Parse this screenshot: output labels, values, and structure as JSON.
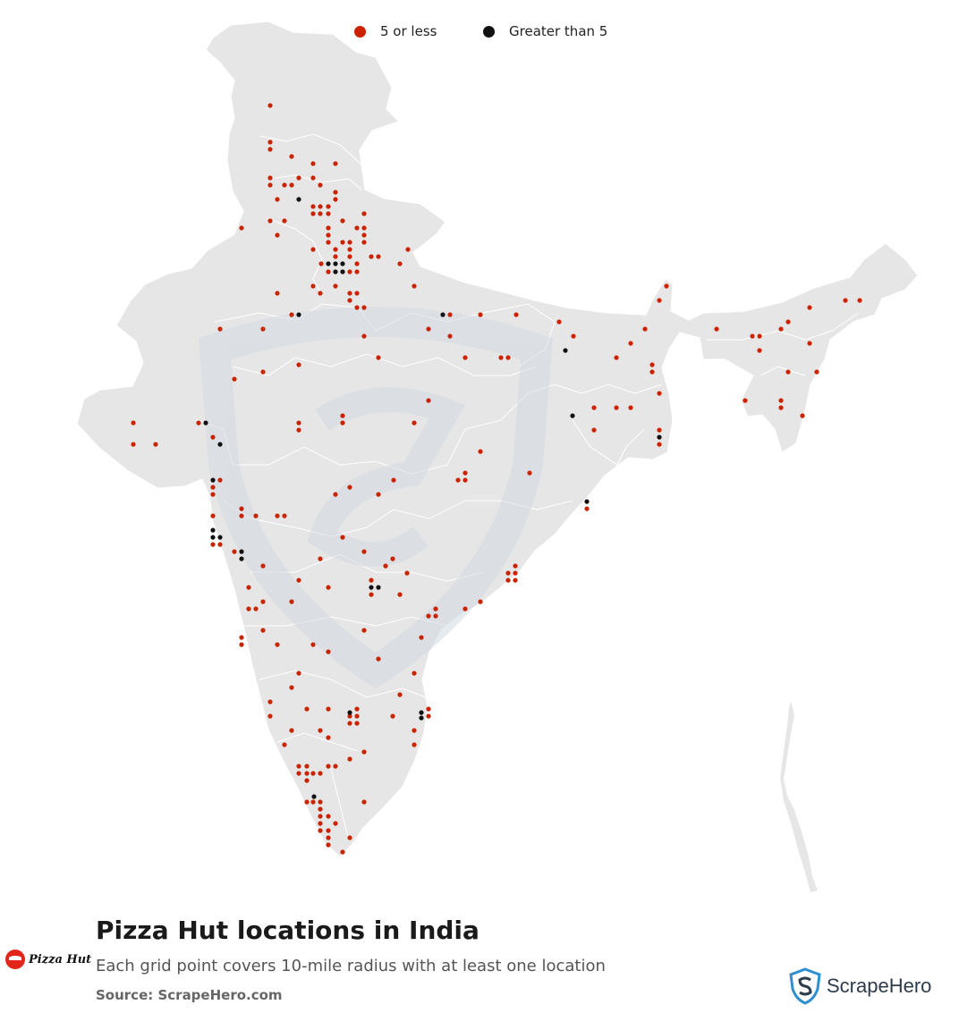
{
  "legend": [
    {
      "label": "5 or less",
      "color": "#cc2200"
    },
    {
      "label": "Greater than 5",
      "color": "#111111"
    }
  ],
  "colors": {
    "land": "#e6e6e6",
    "border": "#ffffff",
    "watermark": "#dde3e8"
  },
  "title": "Pizza Hut locations in India",
  "subtitle": "Each grid point covers 10-mile radius with at least one location",
  "source": "Source: ScrapeHero.com",
  "brand": {
    "name": "Pizza Hut",
    "icon": "pizza-hut-logo-icon"
  },
  "provider": {
    "name": "ScrapeHero",
    "icon": "scrapehero-shield-icon"
  },
  "map": {
    "red_points": [
      [
        302,
        118
      ],
      [
        302,
        159
      ],
      [
        302,
        167
      ],
      [
        326,
        175
      ],
      [
        350,
        183
      ],
      [
        375,
        183
      ],
      [
        302,
        199
      ],
      [
        334,
        199
      ],
      [
        350,
        199
      ],
      [
        302,
        207
      ],
      [
        318,
        207
      ],
      [
        326,
        207
      ],
      [
        358,
        207
      ],
      [
        375,
        215
      ],
      [
        310,
        223
      ],
      [
        375,
        223
      ],
      [
        350,
        231
      ],
      [
        358,
        231
      ],
      [
        367,
        231
      ],
      [
        302,
        247
      ],
      [
        350,
        239
      ],
      [
        358,
        239
      ],
      [
        367,
        239
      ],
      [
        383,
        247
      ],
      [
        407,
        239
      ],
      [
        270,
        255
      ],
      [
        318,
        247
      ],
      [
        367,
        255
      ],
      [
        399,
        255
      ],
      [
        407,
        255
      ],
      [
        310,
        263
      ],
      [
        367,
        263
      ],
      [
        407,
        263
      ],
      [
        367,
        271
      ],
      [
        383,
        271
      ],
      [
        391,
        271
      ],
      [
        407,
        271
      ],
      [
        350,
        279
      ],
      [
        375,
        279
      ],
      [
        391,
        279
      ],
      [
        456,
        279
      ],
      [
        375,
        287
      ],
      [
        391,
        287
      ],
      [
        415,
        287
      ],
      [
        423,
        287
      ],
      [
        359,
        295
      ],
      [
        399,
        295
      ],
      [
        447,
        295
      ],
      [
        367,
        304
      ],
      [
        391,
        304
      ],
      [
        399,
        304
      ],
      [
        463,
        320
      ],
      [
        350,
        320
      ],
      [
        358,
        328
      ],
      [
        375,
        320
      ],
      [
        391,
        328
      ],
      [
        399,
        328
      ],
      [
        310,
        328
      ],
      [
        391,
        336
      ],
      [
        399,
        344
      ],
      [
        407,
        344
      ],
      [
        326,
        352
      ],
      [
        503,
        352
      ],
      [
        537,
        352
      ],
      [
        577,
        352
      ],
      [
        625,
        360
      ],
      [
        737,
        336
      ],
      [
        745,
        320
      ],
      [
        246,
        368
      ],
      [
        294,
        368
      ],
      [
        479,
        368
      ],
      [
        407,
        376
      ],
      [
        503,
        376
      ],
      [
        641,
        376
      ],
      [
        705,
        384
      ],
      [
        721,
        368
      ],
      [
        423,
        400
      ],
      [
        520,
        400
      ],
      [
        560,
        400
      ],
      [
        568,
        400
      ],
      [
        689,
        400
      ],
      [
        729,
        408
      ],
      [
        294,
        416
      ],
      [
        334,
        408
      ],
      [
        729,
        416
      ],
      [
        262,
        424
      ],
      [
        737,
        440
      ],
      [
        479,
        448
      ],
      [
        664,
        456
      ],
      [
        689,
        456
      ],
      [
        705,
        456
      ],
      [
        149,
        473
      ],
      [
        222,
        473
      ],
      [
        334,
        473
      ],
      [
        383,
        465
      ],
      [
        383,
        473
      ],
      [
        463,
        473
      ],
      [
        664,
        481
      ],
      [
        737,
        481
      ],
      [
        149,
        497
      ],
      [
        174,
        497
      ],
      [
        238,
        489
      ],
      [
        737,
        497
      ],
      [
        334,
        481
      ],
      [
        592,
        529
      ],
      [
        537,
        505
      ],
      [
        520,
        529
      ],
      [
        512,
        537
      ],
      [
        520,
        537
      ],
      [
        246,
        537
      ],
      [
        440,
        537
      ],
      [
        238,
        545
      ],
      [
        238,
        553
      ],
      [
        391,
        545
      ],
      [
        375,
        553
      ],
      [
        423,
        553
      ],
      [
        270,
        569
      ],
      [
        270,
        577
      ],
      [
        286,
        577
      ],
      [
        310,
        577
      ],
      [
        318,
        577
      ],
      [
        238,
        577
      ],
      [
        656,
        569
      ],
      [
        238,
        609
      ],
      [
        246,
        609
      ],
      [
        262,
        617
      ],
      [
        383,
        601
      ],
      [
        407,
        617
      ],
      [
        358,
        625
      ],
      [
        439,
        625
      ],
      [
        431,
        633
      ],
      [
        294,
        633
      ],
      [
        576,
        633
      ],
      [
        568,
        641
      ],
      [
        576,
        641
      ],
      [
        568,
        649
      ],
      [
        576,
        649
      ],
      [
        455,
        641
      ],
      [
        334,
        649
      ],
      [
        415,
        649
      ],
      [
        367,
        657
      ],
      [
        415,
        665
      ],
      [
        278,
        657
      ],
      [
        447,
        665
      ],
      [
        537,
        673
      ],
      [
        294,
        673
      ],
      [
        326,
        673
      ],
      [
        278,
        681
      ],
      [
        286,
        681
      ],
      [
        520,
        681
      ],
      [
        487,
        681
      ],
      [
        479,
        689
      ],
      [
        487,
        689
      ],
      [
        270,
        713
      ],
      [
        270,
        721
      ],
      [
        294,
        705
      ],
      [
        407,
        705
      ],
      [
        310,
        721
      ],
      [
        350,
        721
      ],
      [
        471,
        713
      ],
      [
        367,
        729
      ],
      [
        423,
        737
      ],
      [
        334,
        753
      ],
      [
        463,
        753
      ],
      [
        326,
        769
      ],
      [
        447,
        777
      ],
      [
        302,
        785
      ],
      [
        302,
        801
      ],
      [
        343,
        793
      ],
      [
        367,
        793
      ],
      [
        399,
        793
      ],
      [
        391,
        801
      ],
      [
        399,
        801
      ],
      [
        439,
        801
      ],
      [
        479,
        801
      ],
      [
        479,
        793
      ],
      [
        391,
        809
      ],
      [
        399,
        809
      ],
      [
        326,
        817
      ],
      [
        463,
        817
      ],
      [
        358,
        817
      ],
      [
        367,
        825
      ],
      [
        318,
        833
      ],
      [
        463,
        833
      ],
      [
        407,
        841
      ],
      [
        391,
        849
      ],
      [
        334,
        857
      ],
      [
        343,
        857
      ],
      [
        350,
        865
      ],
      [
        367,
        857
      ],
      [
        375,
        857
      ],
      [
        334,
        865
      ],
      [
        343,
        865
      ],
      [
        358,
        865
      ],
      [
        343,
        873
      ],
      [
        343,
        897
      ],
      [
        350,
        897
      ],
      [
        358,
        897
      ],
      [
        407,
        897
      ],
      [
        358,
        905
      ],
      [
        358,
        913
      ],
      [
        367,
        913
      ],
      [
        375,
        921
      ],
      [
        358,
        921
      ],
      [
        367,
        929
      ],
      [
        358,
        929
      ],
      [
        367,
        937
      ],
      [
        391,
        937
      ],
      [
        367,
        945
      ],
      [
        383,
        953
      ],
      [
        801,
        368
      ],
      [
        841,
        376
      ],
      [
        849,
        376
      ],
      [
        881,
        360
      ],
      [
        905,
        344
      ],
      [
        945,
        336
      ],
      [
        961,
        336
      ],
      [
        873,
        368
      ],
      [
        849,
        392
      ],
      [
        905,
        384
      ],
      [
        881,
        416
      ],
      [
        913,
        416
      ],
      [
        833,
        448
      ],
      [
        873,
        448
      ],
      [
        873,
        456
      ],
      [
        897,
        465
      ]
    ],
    "black_points": [
      [
        334,
        223
      ],
      [
        367,
        295
      ],
      [
        375,
        295
      ],
      [
        383,
        295
      ],
      [
        375,
        304
      ],
      [
        383,
        304
      ],
      [
        334,
        352
      ],
      [
        495,
        352
      ],
      [
        632,
        392
      ],
      [
        640,
        465
      ],
      [
        230,
        473
      ],
      [
        246,
        497
      ],
      [
        737,
        489
      ],
      [
        238,
        537
      ],
      [
        656,
        561
      ],
      [
        238,
        593
      ],
      [
        246,
        601
      ],
      [
        238,
        601
      ],
      [
        270,
        617
      ],
      [
        270,
        625
      ],
      [
        415,
        657
      ],
      [
        423,
        657
      ],
      [
        391,
        797
      ],
      [
        471,
        797
      ],
      [
        471,
        803
      ],
      [
        351,
        891
      ]
    ]
  }
}
